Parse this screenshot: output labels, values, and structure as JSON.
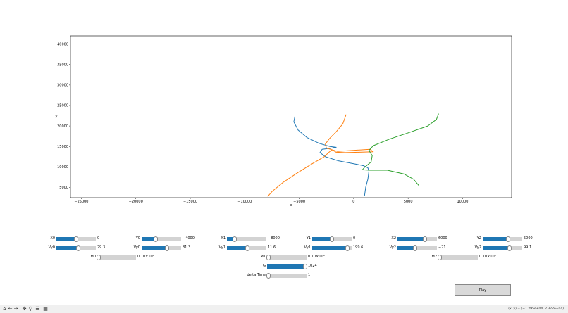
{
  "chart_data": {
    "type": "line",
    "title": "",
    "xlabel": "x",
    "ylabel": "y",
    "xlim": [
      -26000,
      14500
    ],
    "ylim": [
      2500,
      42000
    ],
    "xticks": [
      -25000,
      -20000,
      -15000,
      -10000,
      -5000,
      0,
      5000,
      10000
    ],
    "xtick_labels": [
      "−25000",
      "−20000",
      "−15000",
      "−10000",
      "−5000",
      "0",
      "5000",
      "10000"
    ],
    "yticks": [
      5000,
      10000,
      15000,
      20000,
      25000,
      30000,
      35000,
      40000
    ],
    "ytick_labels": [
      "5000",
      "10000",
      "15000",
      "20000",
      "25000",
      "30000",
      "35000",
      "40000"
    ],
    "grid": false,
    "series": [
      {
        "color": "#1f77b4",
        "points": [
          [
            -5400,
            22300
          ],
          [
            -5500,
            21000
          ],
          [
            -5100,
            19000
          ],
          [
            -4300,
            17200
          ],
          [
            -3200,
            15800
          ],
          [
            -2200,
            15000
          ],
          [
            -1600,
            14800
          ],
          [
            -2000,
            14600
          ],
          [
            -2900,
            14300
          ],
          [
            -3100,
            13500
          ],
          [
            -2600,
            12500
          ],
          [
            -1400,
            11500
          ],
          [
            0,
            10800
          ],
          [
            900,
            10300
          ],
          [
            1300,
            9800
          ],
          [
            1400,
            9000
          ],
          [
            1300,
            7000
          ],
          [
            1100,
            5000
          ],
          [
            1000,
            3000
          ]
        ]
      },
      {
        "color": "#ff7f0e",
        "points": [
          [
            -7900,
            2800
          ],
          [
            -7500,
            4000
          ],
          [
            -6500,
            6200
          ],
          [
            -5200,
            8500
          ],
          [
            -3800,
            10800
          ],
          [
            -2700,
            12500
          ],
          [
            -2300,
            13500
          ],
          [
            -2000,
            14200
          ],
          [
            -1600,
            13600
          ],
          [
            -800,
            13500
          ],
          [
            500,
            13600
          ],
          [
            1800,
            13700
          ],
          [
            1500,
            14300
          ],
          [
            200,
            14100
          ],
          [
            -1500,
            13800
          ],
          [
            -2500,
            14600
          ],
          [
            -2600,
            15600
          ],
          [
            -2200,
            17000
          ],
          [
            -1600,
            18600
          ],
          [
            -1000,
            20500
          ],
          [
            -700,
            22800
          ]
        ]
      },
      {
        "color": "#2ca02c",
        "points": [
          [
            7800,
            23000
          ],
          [
            7600,
            21600
          ],
          [
            6800,
            20000
          ],
          [
            5200,
            18500
          ],
          [
            3300,
            16800
          ],
          [
            1800,
            15200
          ],
          [
            1400,
            14000
          ],
          [
            1700,
            12800
          ],
          [
            1600,
            11200
          ],
          [
            1000,
            9900
          ],
          [
            800,
            9300
          ],
          [
            1500,
            9200
          ],
          [
            3100,
            9200
          ],
          [
            4600,
            8300
          ],
          [
            5500,
            7000
          ],
          [
            6000,
            5400
          ]
        ]
      }
    ]
  },
  "sliders": [
    {
      "label": "X0",
      "value": "0",
      "fraction": 0.5,
      "col": 0,
      "row": 0
    },
    {
      "label": "Y0",
      "value": "−4000",
      "fraction": 0.35,
      "col": 1,
      "row": 0
    },
    {
      "label": "X1",
      "value": "−8000",
      "fraction": 0.2,
      "col": 2,
      "row": 0
    },
    {
      "label": "Y1",
      "value": "0",
      "fraction": 0.5,
      "col": 3,
      "row": 0
    },
    {
      "label": "X2",
      "value": "6000",
      "fraction": 0.7,
      "col": 4,
      "row": 0
    },
    {
      "label": "Y2",
      "value": "5000",
      "fraction": 0.65,
      "col": 5,
      "row": 0
    },
    {
      "label": "Vy0",
      "value": "29.3",
      "fraction": 0.55,
      "col": 0,
      "row": 1
    },
    {
      "label": "Vy0",
      "value": "81.3",
      "fraction": 0.65,
      "col": 1,
      "row": 1
    },
    {
      "label": "Vy1",
      "value": "11.6",
      "fraction": 0.52,
      "col": 2,
      "row": 1
    },
    {
      "label": "Vy1",
      "value": "199.6",
      "fraction": 0.9,
      "col": 3,
      "row": 1
    },
    {
      "label": "Vy2",
      "value": "−21",
      "fraction": 0.45,
      "col": 4,
      "row": 1
    },
    {
      "label": "Vy2",
      "value": "99.1",
      "fraction": 0.68,
      "col": 5,
      "row": 1
    },
    {
      "label": "M0",
      "value": "0.10×10⁶",
      "fraction": 0.02,
      "col": "m0",
      "row": 2
    },
    {
      "label": "M1",
      "value": "0.10×10⁶",
      "fraction": 0.02,
      "col": "m1",
      "row": 2
    },
    {
      "label": "M2",
      "value": "0.10×10⁶",
      "fraction": 0.02,
      "col": "m2",
      "row": 2
    },
    {
      "label": "G",
      "value": "1024",
      "fraction": 1.0,
      "col": "g",
      "row": 3
    },
    {
      "label": "delta Time",
      "value": "1",
      "fraction": 0.0,
      "col": "dt",
      "row": 4
    }
  ],
  "play_label": "Play",
  "toolbar": {
    "icons": [
      "home-icon",
      "back-icon",
      "forward-icon",
      "pan-icon",
      "zoom-icon",
      "configure-icon",
      "save-icon"
    ],
    "coord_readout": "(x, y) = (−1.295e+04, 2.372e+04)"
  }
}
